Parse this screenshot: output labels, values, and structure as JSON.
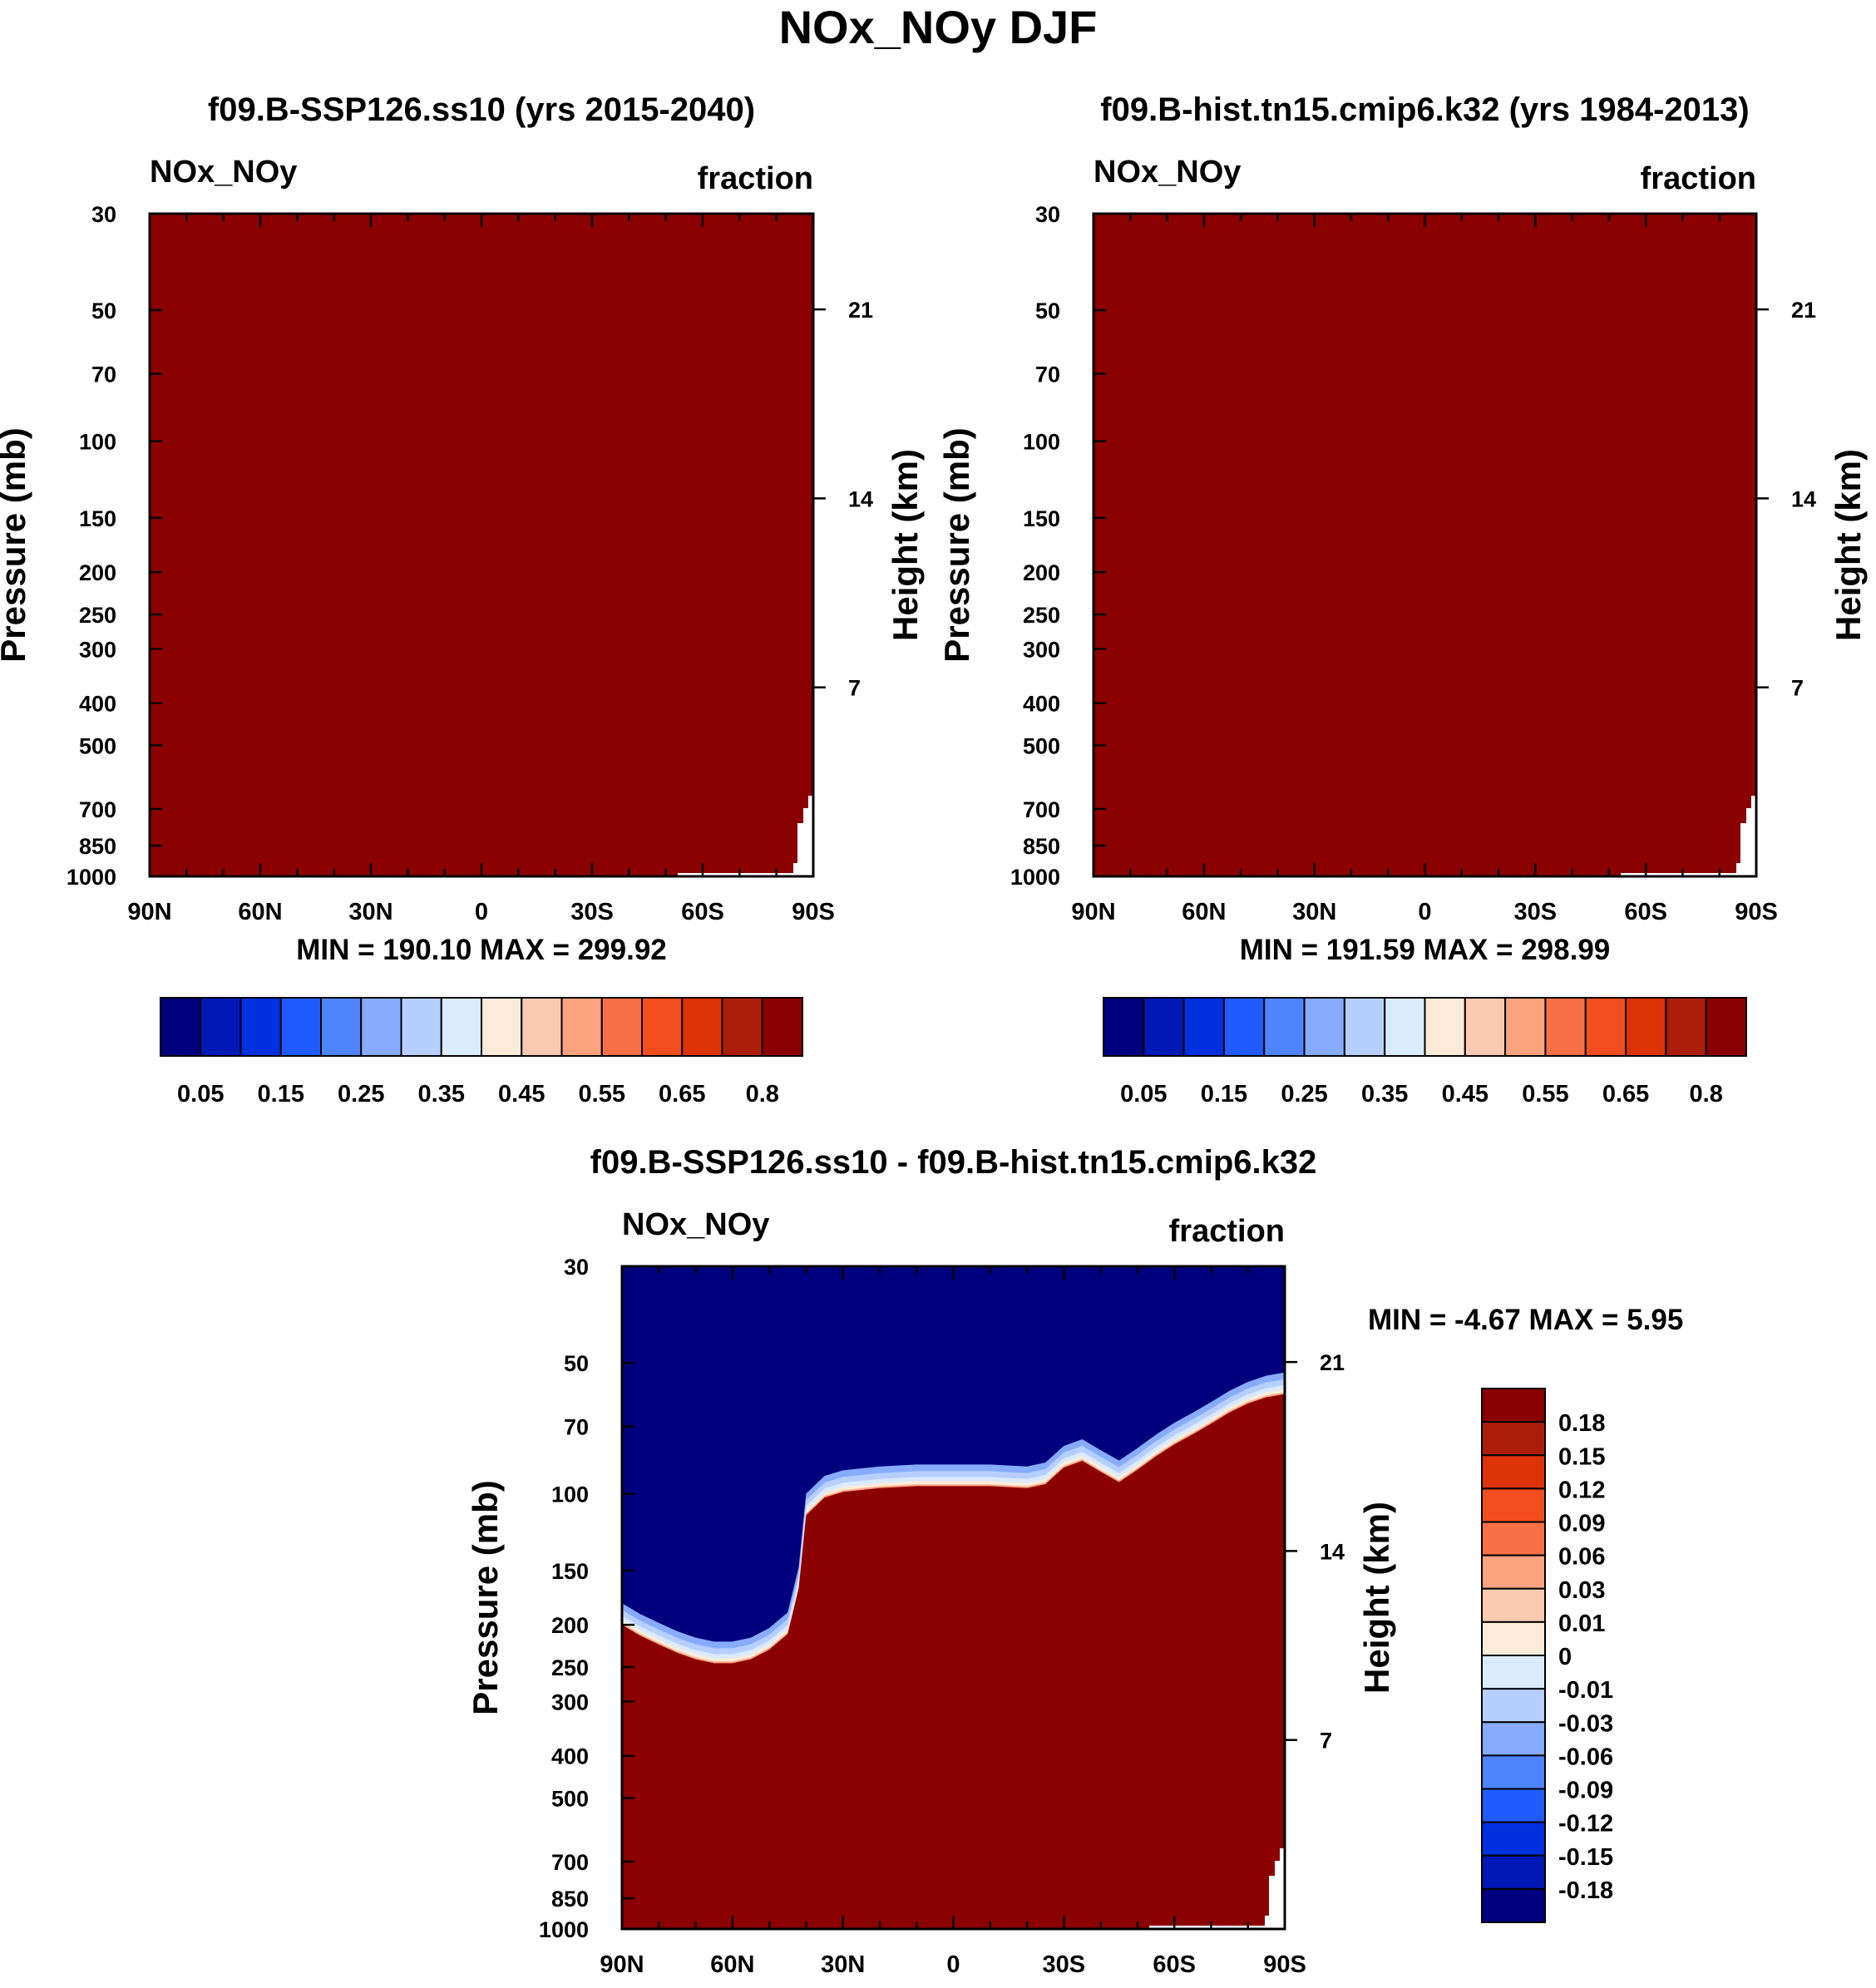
{
  "title": "NOx_NOy DJF",
  "colors": {
    "fill": "#8b0000",
    "background": "#ffffff",
    "seq_palette": [
      "#00007f",
      "#0019b6",
      "#0030e0",
      "#1f5bff",
      "#4f84ff",
      "#87abff",
      "#b7cfff",
      "#daeaff",
      "#fdebd9",
      "#fccab0",
      "#fca27e",
      "#fa7046",
      "#f24d1f",
      "#dd3308",
      "#ad1e0a",
      "#8b0000"
    ],
    "diff_palette": [
      "#00007f",
      "#0019b6",
      "#0030e0",
      "#1f5bff",
      "#4f84ff",
      "#87abff",
      "#b7cfff",
      "#daeaff",
      "#fdebd9",
      "#fccab0",
      "#fca27e",
      "#fa7046",
      "#f24d1f",
      "#dd3308",
      "#ad1e0a",
      "#8b0000"
    ]
  },
  "chart_data": [
    {
      "type": "heatmap",
      "id": "panel-a",
      "title": "f09.B-SSP126.ss10 (yrs 2015-2040)",
      "left_label": "NOx_NOy",
      "right_label": "fraction",
      "ylabel": "Pressure (mb)",
      "ylabel_right": "Height (km)",
      "xticks": [
        "90N",
        "60N",
        "30N",
        "0",
        "30S",
        "60S",
        "90S"
      ],
      "yticks": [
        30,
        50,
        70,
        100,
        150,
        200,
        250,
        300,
        400,
        500,
        700,
        850,
        1000
      ],
      "height_ticks": [
        21,
        14,
        7
      ],
      "xlim": [
        90,
        -90
      ],
      "ylim": [
        1000,
        30
      ],
      "field": "uniform",
      "min_max": "MIN = 190.10  MAX = 299.92",
      "colorbar_labels": [
        "0.05",
        "0.15",
        "0.25",
        "0.35",
        "0.45",
        "0.55",
        "0.65",
        "0.8"
      ]
    },
    {
      "type": "heatmap",
      "id": "panel-b",
      "title": "f09.B-hist.tn15.cmip6.k32 (yrs 1984-2013)",
      "left_label": "NOx_NOy",
      "right_label": "fraction",
      "ylabel": "Pressure (mb)",
      "ylabel_right": "Height (km)",
      "xticks": [
        "90N",
        "60N",
        "30N",
        "0",
        "30S",
        "60S",
        "90S"
      ],
      "yticks": [
        30,
        50,
        70,
        100,
        150,
        200,
        250,
        300,
        400,
        500,
        700,
        850,
        1000
      ],
      "height_ticks": [
        21,
        14,
        7
      ],
      "xlim": [
        90,
        -90
      ],
      "ylim": [
        1000,
        30
      ],
      "field": "uniform",
      "min_max": "MIN = 191.59  MAX = 298.99",
      "colorbar_labels": [
        "0.05",
        "0.15",
        "0.25",
        "0.35",
        "0.45",
        "0.55",
        "0.65",
        "0.8"
      ]
    },
    {
      "type": "heatmap",
      "id": "panel-diff",
      "title": "f09.B-SSP126.ss10 - f09.B-hist.tn15.cmip6.k32",
      "left_label": "NOx_NOy",
      "right_label": "fraction",
      "ylabel": "Pressure (mb)",
      "ylabel_right": "Height (km)",
      "xticks": [
        "90N",
        "60N",
        "30N",
        "0",
        "30S",
        "60S",
        "90S"
      ],
      "yticks": [
        30,
        50,
        70,
        100,
        150,
        200,
        250,
        300,
        400,
        500,
        700,
        850,
        1000
      ],
      "height_ticks": [
        21,
        14,
        7
      ],
      "xlim": [
        90,
        -90
      ],
      "ylim": [
        1000,
        30
      ],
      "field": "positive below boundary, negative above",
      "boundary": {
        "lat": [
          90,
          85,
          80,
          75,
          70,
          65,
          60,
          55,
          50,
          45,
          42,
          40,
          35,
          30,
          20,
          10,
          0,
          -10,
          -20,
          -25,
          -30,
          -35,
          -40,
          -45,
          -50,
          -55,
          -60,
          -65,
          -70,
          -75,
          -80,
          -85,
          -90
        ],
        "pressure": [
          200,
          212,
          222,
          232,
          240,
          245,
          245,
          240,
          228,
          210,
          165,
          112,
          102,
          99,
          97,
          96,
          96,
          96,
          97,
          95,
          87,
          84,
          89,
          94,
          88,
          82,
          77,
          73,
          69,
          65,
          62,
          60,
          59
        ]
      },
      "min_max": "MIN =  -4.67  MAX =   5.95",
      "colorbar_labels": [
        "0.18",
        "0.15",
        "0.12",
        "0.09",
        "0.06",
        "0.03",
        "0.01",
        "0",
        "-0.01",
        "-0.03",
        "-0.06",
        "-0.09",
        "-0.12",
        "-0.15",
        "-0.18"
      ]
    }
  ]
}
